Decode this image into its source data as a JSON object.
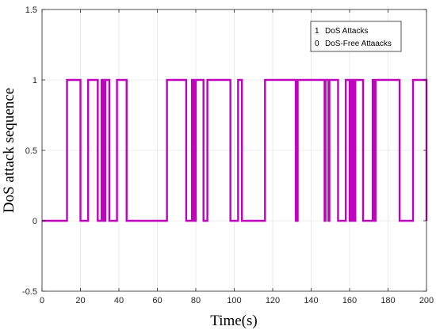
{
  "chart_data": {
    "type": "line",
    "title": "",
    "xlabel": "Time(s)",
    "ylabel": "DoS attack sequence",
    "xlim": [
      0,
      200
    ],
    "ylim": [
      -0.5,
      1.5
    ],
    "xticks": [
      0,
      20,
      40,
      60,
      80,
      100,
      120,
      140,
      160,
      180,
      200
    ],
    "yticks": [
      -0.5,
      0,
      0.5,
      1,
      1.5
    ],
    "xtick_labels": [
      "0",
      "20",
      "40",
      "60",
      "80",
      "100",
      "120",
      "140",
      "160",
      "180",
      "200"
    ],
    "ytick_labels": [
      "-0.5",
      "0",
      "0.5",
      "1",
      "1.5"
    ],
    "grid": true,
    "legend_position": "top-right",
    "legend_entries": [
      {
        "marker": "1",
        "label": "DoS Attacks"
      },
      {
        "marker": "0",
        "label": "DoS-Free Attaacks"
      }
    ],
    "series": [
      {
        "name": "",
        "color": "#bf00bf",
        "step": true,
        "x": [
          0,
          13,
          20,
          24,
          29,
          31,
          32,
          33,
          35,
          39,
          40,
          44,
          64,
          65,
          75,
          78,
          79,
          80,
          84,
          86,
          98,
          102,
          104,
          116,
          132,
          133,
          147,
          147.5,
          149,
          149.5,
          154,
          158,
          160,
          161,
          162,
          163,
          167,
          172,
          173,
          173.5,
          186,
          193,
          200
        ],
        "values": [
          0,
          1,
          0,
          1,
          0,
          1,
          0,
          1,
          0,
          1,
          1,
          0,
          0,
          1,
          0,
          1,
          0,
          1,
          0,
          1,
          0,
          1,
          0,
          1,
          0,
          1,
          0,
          1,
          0,
          1,
          0,
          1,
          0,
          1,
          0,
          1,
          0,
          1,
          0,
          1,
          0,
          1,
          0
        ]
      }
    ]
  }
}
